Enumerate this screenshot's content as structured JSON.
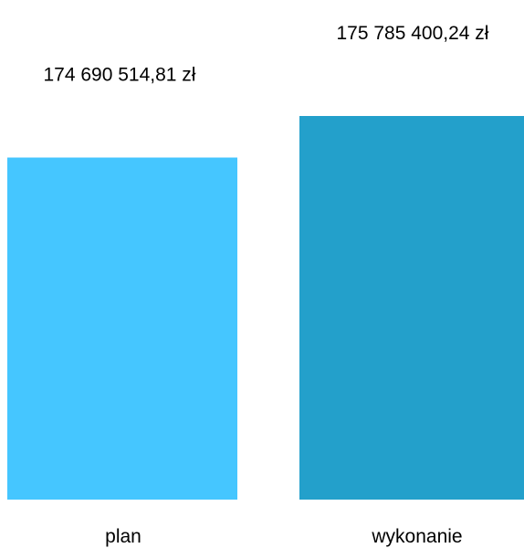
{
  "chart_data": {
    "type": "bar",
    "categories": [
      "plan",
      "wykonanie"
    ],
    "values": [
      174690514.81,
      175785400.24
    ],
    "value_labels": [
      "174 690 514,81 zł",
      "175 785 400,24 zł"
    ],
    "colors": [
      "#45C6FF",
      "#23A0CB"
    ],
    "title": "",
    "xlabel": "",
    "ylabel": "",
    "grid": false,
    "legend": "none"
  }
}
